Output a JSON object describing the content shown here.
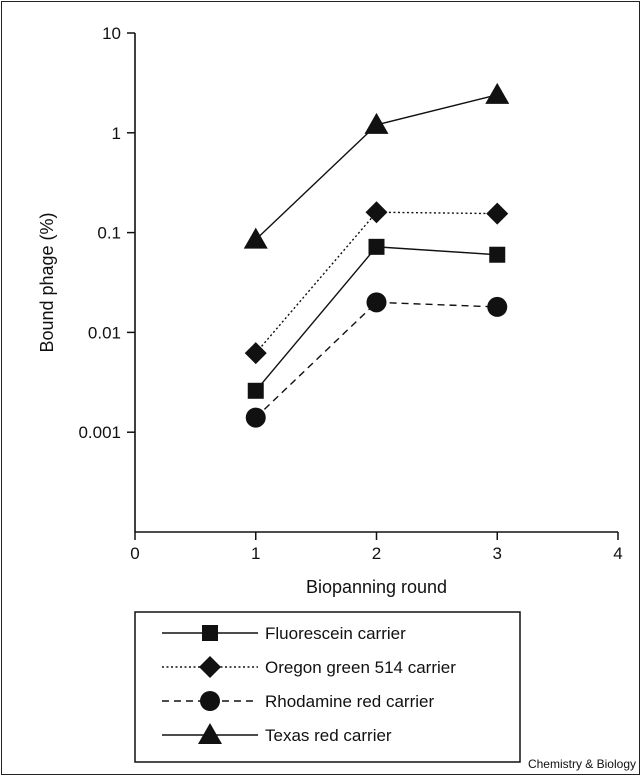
{
  "chart_data": {
    "type": "line",
    "title": "",
    "xlabel": "Biopanning round",
    "ylabel": "Bound phage (%)",
    "xlim": [
      0,
      4
    ],
    "ylim": [
      0.0001,
      10
    ],
    "yscale": "log",
    "x_ticks": [
      "0",
      "1",
      "2",
      "3",
      "4"
    ],
    "y_ticks": [
      "0.001",
      "0.01",
      "0.1",
      "1",
      "10"
    ],
    "grid": false,
    "legend_position": "bottom",
    "x": [
      1,
      2,
      3
    ],
    "series": [
      {
        "name": "Fluorescein carrier",
        "marker": "square",
        "line_style": "solid",
        "values": [
          0.0026,
          0.072,
          0.06
        ]
      },
      {
        "name": "Oregon green 514 carrier",
        "marker": "diamond",
        "line_style": "dotted",
        "values": [
          0.0062,
          0.16,
          0.155
        ]
      },
      {
        "name": "Rhodamine red carrier",
        "marker": "circle",
        "line_style": "dashed",
        "values": [
          0.0014,
          0.02,
          0.018
        ]
      },
      {
        "name": "Texas red carrier",
        "marker": "triangle",
        "line_style": "solid",
        "values": [
          0.085,
          1.2,
          2.4
        ]
      }
    ],
    "color": "#111111"
  },
  "credit": "Chemistry & Biology"
}
